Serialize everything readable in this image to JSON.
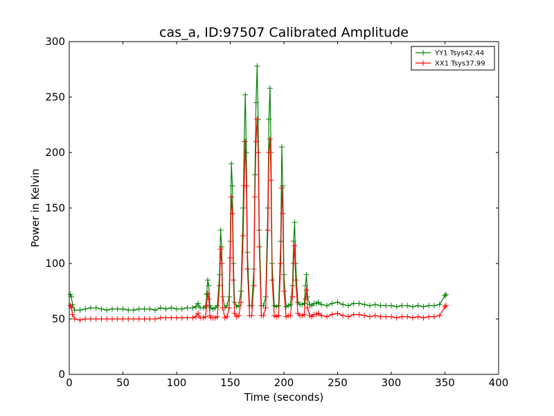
{
  "chart_data": {
    "type": "line",
    "title": "cas_a, ID:97507 Calibrated Amplitude",
    "xlabel": "Time (seconds)",
    "ylabel": "Power in Kelvin",
    "xlim": [
      0,
      400
    ],
    "ylim": [
      0,
      300
    ],
    "xticks": [
      0,
      50,
      100,
      150,
      200,
      250,
      300,
      350,
      400
    ],
    "yticks": [
      0,
      50,
      100,
      150,
      200,
      250,
      300
    ],
    "grid": false,
    "legend_position": "top-right",
    "marker": "plus",
    "series": [
      {
        "name": "YY1 Tsys42.44",
        "color": "#008000",
        "x": [
          1,
          2,
          3,
          5,
          10,
          15,
          20,
          25,
          30,
          35,
          40,
          45,
          50,
          55,
          60,
          65,
          70,
          75,
          80,
          85,
          90,
          95,
          100,
          105,
          110,
          115,
          118,
          120,
          122,
          125,
          127,
          128,
          129,
          130,
          131,
          132,
          134,
          136,
          138,
          140,
          141,
          142,
          143,
          145,
          147,
          149,
          150,
          151,
          152,
          153,
          154,
          156,
          158,
          160,
          162,
          163,
          164,
          165,
          166,
          168,
          170,
          172,
          173,
          174,
          175,
          176,
          177,
          179,
          181,
          183,
          185,
          186,
          187,
          188,
          189,
          191,
          193,
          195,
          197,
          198,
          199,
          200,
          202,
          204,
          206,
          208,
          209,
          210,
          211,
          213,
          215,
          217,
          219,
          220,
          221,
          222,
          224,
          226,
          228,
          230,
          232,
          235,
          240,
          245,
          250,
          255,
          260,
          265,
          270,
          275,
          280,
          285,
          290,
          295,
          300,
          305,
          310,
          315,
          320,
          325,
          330,
          335,
          340,
          345,
          350,
          351
        ],
        "y": [
          72,
          70,
          63,
          58,
          58,
          59,
          60,
          60,
          59,
          58,
          59,
          59,
          59,
          58,
          58,
          59,
          59,
          59,
          58,
          60,
          59,
          60,
          59,
          59,
          60,
          60,
          61,
          64,
          60,
          60,
          61,
          72,
          85,
          80,
          62,
          60,
          59,
          60,
          62,
          90,
          130,
          115,
          70,
          60,
          62,
          70,
          120,
          190,
          170,
          100,
          65,
          61,
          62,
          75,
          150,
          210,
          252,
          200,
          110,
          62,
          62,
          95,
          180,
          245,
          278,
          230,
          130,
          62,
          62,
          70,
          150,
          230,
          258,
          200,
          100,
          62,
          61,
          62,
          120,
          205,
          170,
          90,
          61,
          62,
          63,
          80,
          120,
          137,
          100,
          65,
          63,
          63,
          64,
          80,
          90,
          70,
          63,
          62,
          64,
          64,
          65,
          63,
          62,
          64,
          65,
          63,
          62,
          64,
          64,
          63,
          62,
          63,
          62,
          62,
          62,
          61,
          62,
          62,
          61,
          62,
          61,
          62,
          62,
          63,
          71,
          72
        ]
      },
      {
        "name": "XX1 Tsys37.99",
        "color": "#ff0000",
        "x": [
          1,
          2,
          3,
          5,
          10,
          15,
          20,
          25,
          30,
          35,
          40,
          45,
          50,
          55,
          60,
          65,
          70,
          75,
          80,
          85,
          90,
          95,
          100,
          105,
          110,
          115,
          118,
          120,
          122,
          125,
          127,
          128,
          129,
          130,
          131,
          132,
          134,
          136,
          138,
          140,
          141,
          142,
          143,
          145,
          147,
          149,
          150,
          151,
          152,
          153,
          154,
          156,
          158,
          160,
          162,
          163,
          164,
          165,
          166,
          168,
          170,
          172,
          173,
          174,
          175,
          176,
          177,
          179,
          181,
          183,
          185,
          186,
          187,
          188,
          189,
          191,
          193,
          195,
          197,
          198,
          199,
          200,
          202,
          204,
          206,
          208,
          209,
          210,
          211,
          213,
          215,
          217,
          219,
          220,
          221,
          222,
          224,
          226,
          228,
          230,
          232,
          235,
          240,
          245,
          250,
          255,
          260,
          265,
          270,
          275,
          280,
          285,
          290,
          295,
          300,
          305,
          310,
          315,
          320,
          325,
          330,
          335,
          340,
          345,
          350,
          351
        ],
        "y": [
          62,
          60,
          54,
          50,
          49,
          50,
          50,
          50,
          50,
          50,
          50,
          50,
          50,
          50,
          50,
          50,
          50,
          50,
          50,
          51,
          51,
          51,
          51,
          51,
          51,
          51,
          52,
          55,
          51,
          51,
          52,
          62,
          73,
          68,
          53,
          51,
          51,
          51,
          52,
          80,
          113,
          100,
          60,
          51,
          52,
          60,
          105,
          160,
          145,
          85,
          55,
          52,
          53,
          65,
          125,
          170,
          210,
          170,
          95,
          53,
          53,
          80,
          160,
          210,
          230,
          200,
          115,
          53,
          53,
          60,
          130,
          200,
          212,
          175,
          85,
          53,
          52,
          53,
          100,
          168,
          145,
          75,
          52,
          53,
          53,
          70,
          100,
          116,
          85,
          55,
          53,
          53,
          54,
          68,
          76,
          60,
          53,
          52,
          54,
          54,
          55,
          53,
          52,
          54,
          55,
          53,
          52,
          54,
          54,
          53,
          52,
          53,
          52,
          52,
          52,
          51,
          52,
          52,
          51,
          52,
          51,
          52,
          52,
          53,
          61,
          62
        ]
      }
    ]
  }
}
